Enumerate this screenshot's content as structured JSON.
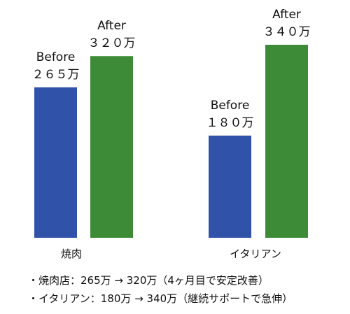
{
  "chart_data": {
    "type": "bar",
    "categories": [
      "焼肉",
      "イタリアン"
    ],
    "series": [
      {
        "name": "Before",
        "value_labels": [
          "２６５万",
          "１８０万"
        ],
        "values": [
          265,
          180
        ],
        "color": "#3052a8"
      },
      {
        "name": "After",
        "value_labels": [
          "３２０万",
          "３４０万"
        ],
        "values": [
          320,
          340
        ],
        "color": "#3d8b37"
      }
    ],
    "ylim": [
      0,
      340
    ],
    "grid": false
  },
  "notes": [
    "・焼肉店：265万 → 320万（4ヶ月目で安定改善）",
    "・イタリアン：180万 → 340万（継続サポートで急伸）"
  ]
}
